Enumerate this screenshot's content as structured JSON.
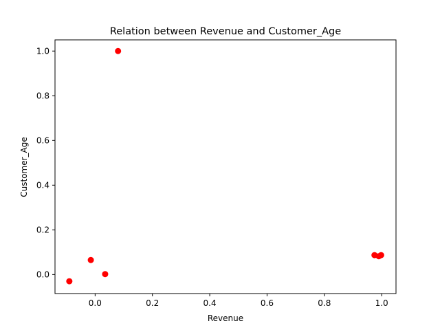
{
  "chart_data": {
    "type": "scatter",
    "title": "Relation between Revenue and Customer_Age",
    "xlabel": "Revenue",
    "ylabel": "Customer_Age",
    "xlim": [
      -0.14,
      1.05
    ],
    "ylim": [
      -0.085,
      1.05
    ],
    "xticks": [
      0.0,
      0.2,
      0.4,
      0.6,
      0.8,
      1.0
    ],
    "xtick_labels": [
      "0.0",
      "0.2",
      "0.4",
      "0.6",
      "0.8",
      "1.0"
    ],
    "yticks": [
      0.0,
      0.2,
      0.4,
      0.6,
      0.8,
      1.0
    ],
    "ytick_labels": [
      "0.0",
      "0.2",
      "0.4",
      "0.6",
      "0.8",
      "1.0"
    ],
    "grid": false,
    "marker_color": "#ff0000",
    "points": [
      {
        "x": -0.09,
        "y": -0.03
      },
      {
        "x": -0.015,
        "y": 0.065
      },
      {
        "x": 0.035,
        "y": 0.002
      },
      {
        "x": 0.08,
        "y": 1.0
      },
      {
        "x": 0.975,
        "y": 0.087
      },
      {
        "x": 0.99,
        "y": 0.082
      },
      {
        "x": 0.998,
        "y": 0.087
      }
    ]
  }
}
